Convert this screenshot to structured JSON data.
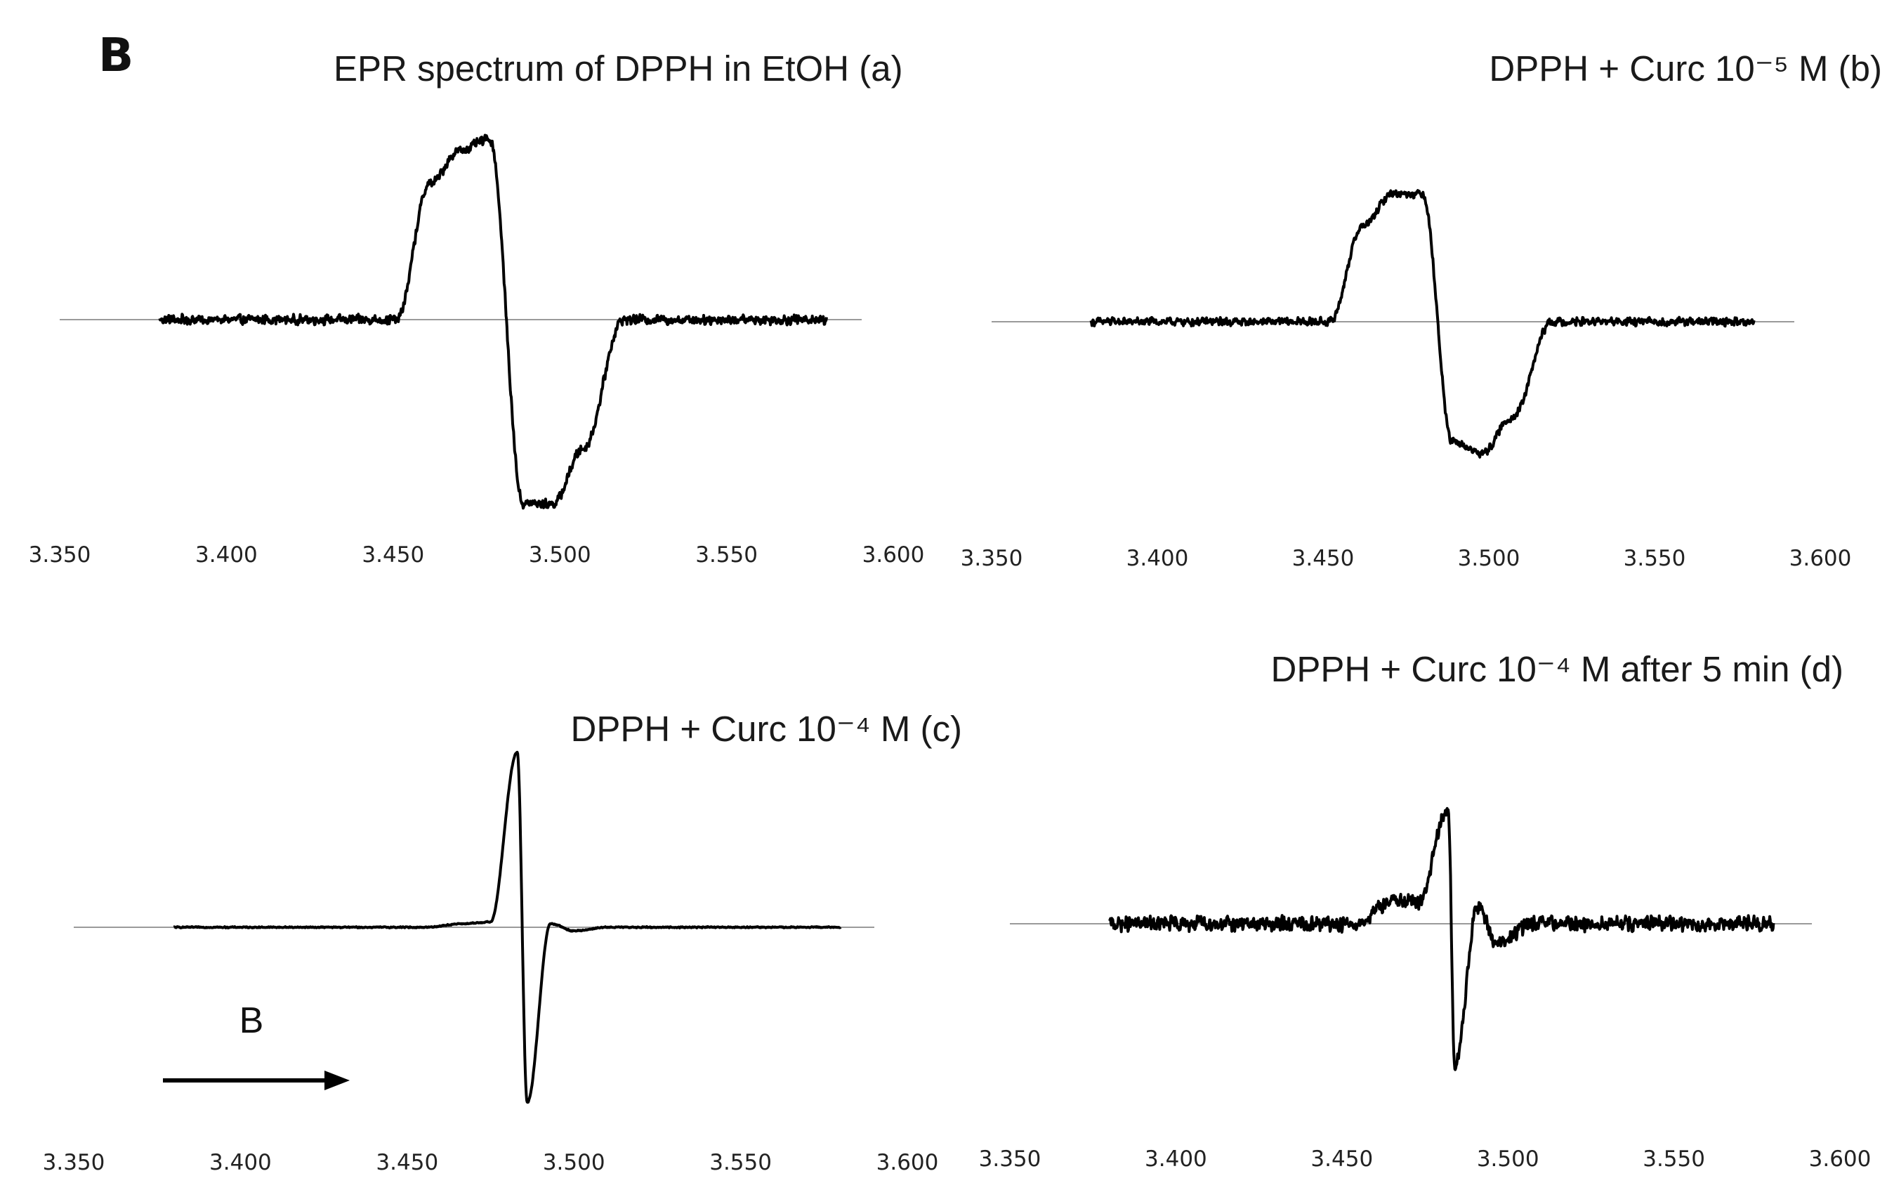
{
  "figure": {
    "panel_letter": "B",
    "field_arrow_label": "B"
  },
  "chart_data": [
    {
      "id": "a",
      "type": "line",
      "title": "EPR spectrum of DPPH in EtOH (a)",
      "xlim": [
        3.35,
        3.6
      ],
      "xticks": [
        "3.350",
        "3.400",
        "3.450",
        "3.500",
        "3.550",
        "3.600"
      ],
      "x_range": [
        3.38,
        3.58
      ],
      "noise": 0.03,
      "peaks": [
        {
          "x": 3.461,
          "y": 0.74
        },
        {
          "x": 3.47,
          "y": 0.92
        },
        {
          "x": 3.479,
          "y": 0.98
        },
        {
          "x": 3.489,
          "y": -1.0
        },
        {
          "x": 3.498,
          "y": -1.0
        },
        {
          "x": 3.507,
          "y": -0.7
        }
      ],
      "line_color": "#000000"
    },
    {
      "id": "b",
      "type": "line",
      "title": "DPPH + Curc 10⁻⁵ M (b)",
      "xlim": [
        3.35,
        3.6
      ],
      "xticks": [
        "3.350",
        "3.400",
        "3.450",
        "3.500",
        "3.550",
        "3.600"
      ],
      "x_range": [
        3.38,
        3.58
      ],
      "noise": 0.03,
      "peaks": [
        {
          "x": 3.462,
          "y": 0.62
        },
        {
          "x": 3.471,
          "y": 0.83
        },
        {
          "x": 3.48,
          "y": 0.83
        },
        {
          "x": 3.489,
          "y": -0.78
        },
        {
          "x": 3.498,
          "y": -0.85
        },
        {
          "x": 3.507,
          "y": -0.62
        }
      ],
      "line_color": "#000000"
    },
    {
      "id": "c",
      "type": "line",
      "title": "DPPH + Curc 10⁻⁴ M (c)",
      "xlim": [
        3.35,
        3.6
      ],
      "xticks": [
        "3.350",
        "3.400",
        "3.450",
        "3.500",
        "3.550",
        "3.600"
      ],
      "x_range": [
        3.38,
        3.58
      ],
      "noise": 0.004,
      "peaks": [
        {
          "x": 3.467,
          "y": 0.02
        },
        {
          "x": 3.475,
          "y": 0.03
        },
        {
          "x": 3.483,
          "y": 0.99
        },
        {
          "x": 3.486,
          "y": -0.99
        },
        {
          "x": 3.493,
          "y": 0.02
        },
        {
          "x": 3.5,
          "y": -0.02
        }
      ],
      "line_color": "#000000"
    },
    {
      "id": "d",
      "type": "line",
      "title": "DPPH + Curc 10⁻⁴ M after 5 min (d)",
      "xlim": [
        3.35,
        3.6
      ],
      "xticks": [
        "3.350",
        "3.400",
        "3.450",
        "3.500",
        "3.550",
        "3.600"
      ],
      "x_range": [
        3.38,
        3.58
      ],
      "noise": 0.05,
      "peaks": [
        {
          "x": 3.466,
          "y": 0.14
        },
        {
          "x": 3.473,
          "y": 0.12
        },
        {
          "x": 3.482,
          "y": 0.66
        },
        {
          "x": 3.484,
          "y": -0.82
        },
        {
          "x": 3.491,
          "y": 0.1
        },
        {
          "x": 3.497,
          "y": -0.12
        }
      ],
      "line_color": "#000000"
    }
  ]
}
